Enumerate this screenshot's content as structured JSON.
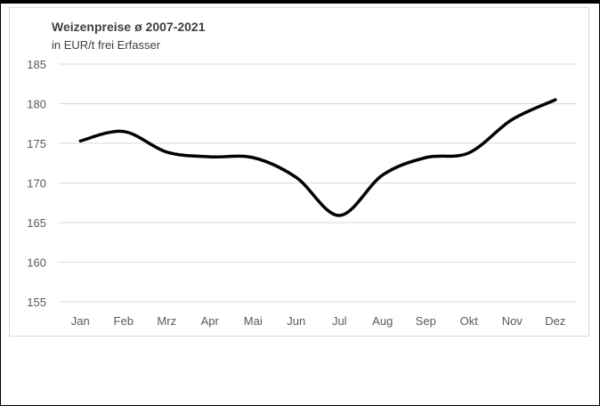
{
  "chart_data": {
    "type": "line",
    "title": "Weizenpreise ø 2007-2021",
    "subtitle": "in EUR/t frei Erfasser",
    "categories": [
      "Jan",
      "Feb",
      "Mrz",
      "Apr",
      "Mai",
      "Jun",
      "Jul",
      "Aug",
      "Sep",
      "Okt",
      "Nov",
      "Dez"
    ],
    "series": [
      {
        "values": [
          175.3,
          176.5,
          173.9,
          173.3,
          173.2,
          170.7,
          165.9,
          171.0,
          173.2,
          173.8,
          178.0,
          180.5
        ]
      }
    ],
    "yticks": [
      "155",
      "160",
      "165",
      "170",
      "175",
      "180",
      "185"
    ],
    "ylim": [
      155,
      185
    ],
    "grid": true,
    "line_color": "#000000"
  }
}
